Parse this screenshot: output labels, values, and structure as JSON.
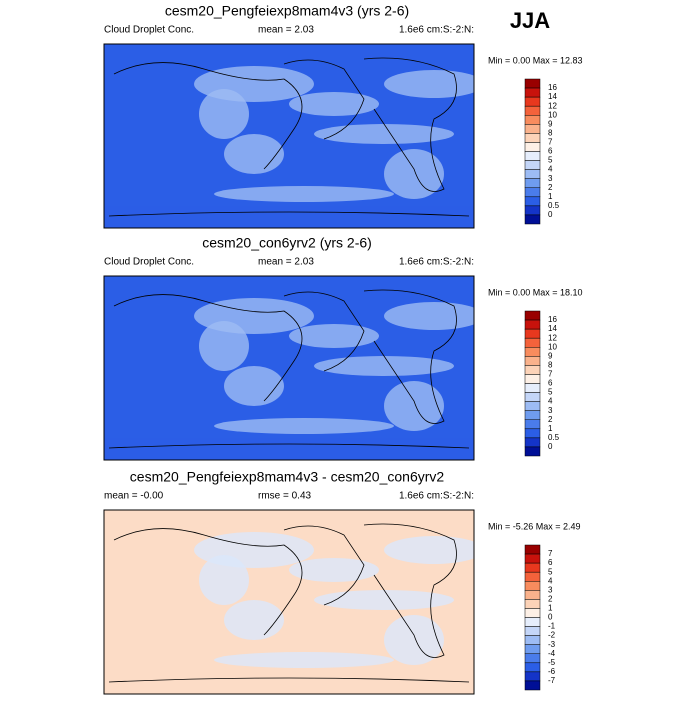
{
  "header": {
    "season": "JJA"
  },
  "panels": [
    {
      "title": "cesm20_Pengfeiexp8mam4v3 (yrs 2-6)",
      "left_label": "Cloud Droplet Conc.",
      "stat1": "mean =  2.03",
      "units": "1.6e6 cm:S:-2:N:",
      "minmax": "Min =  0.00 Max =  12.83",
      "colorbar": {
        "labels": [
          "16",
          "14",
          "12",
          "10",
          "9",
          "8",
          "7",
          "6",
          "5",
          "4",
          "3",
          "2",
          "1",
          "0.5",
          "0"
        ],
        "colors": [
          "#990000",
          "#c8120c",
          "#e8381e",
          "#f4623b",
          "#f88c5e",
          "#fab28c",
          "#fcd3b8",
          "#fdf0e6",
          "#e6eefc",
          "#c4d6f8",
          "#9dbcf4",
          "#6f9cef",
          "#4a7ceb",
          "#2b5ee6",
          "#1434c8",
          "#000f96"
        ]
      },
      "map": {
        "base": "#2b5ee6",
        "patch": "#9dbcf4"
      }
    },
    {
      "title": "cesm20_con6yrv2 (yrs 2-6)",
      "left_label": "Cloud Droplet Conc.",
      "stat1": "mean =  2.03",
      "units": "1.6e6 cm:S:-2:N:",
      "minmax": "Min =  0.00 Max =  18.10",
      "colorbar": {
        "labels": [
          "16",
          "14",
          "12",
          "10",
          "9",
          "8",
          "7",
          "6",
          "5",
          "4",
          "3",
          "2",
          "1",
          "0.5",
          "0"
        ],
        "colors": [
          "#990000",
          "#c8120c",
          "#e8381e",
          "#f4623b",
          "#f88c5e",
          "#fab28c",
          "#fcd3b8",
          "#fdf0e6",
          "#e6eefc",
          "#c4d6f8",
          "#9dbcf4",
          "#6f9cef",
          "#4a7ceb",
          "#2b5ee6",
          "#1434c8",
          "#000f96"
        ]
      },
      "map": {
        "base": "#2b5ee6",
        "patch": "#9dbcf4"
      }
    },
    {
      "title": "cesm20_Pengfeiexp8mam4v3 - cesm20_con6yrv2",
      "left_label": "mean = -0.00",
      "stat1": "rmse =  0.43",
      "units": "1.6e6 cm:S:-2:N:",
      "minmax": "Min = -5.26 Max =  2.49",
      "colorbar": {
        "labels": [
          "7",
          "6",
          "5",
          "4",
          "3",
          "2",
          "1",
          "0",
          "-1",
          "-2",
          "-3",
          "-4",
          "-5",
          "-6",
          "-7"
        ],
        "colors": [
          "#990000",
          "#c8120c",
          "#e8381e",
          "#f4623b",
          "#f88c5e",
          "#fab28c",
          "#fcd3b8",
          "#fdf0e6",
          "#e6eefc",
          "#c4d6f8",
          "#9dbcf4",
          "#6f9cef",
          "#4a7ceb",
          "#2b5ee6",
          "#1434c8",
          "#000f96"
        ]
      },
      "map": {
        "base": "#fcdcc6",
        "patch": "#dbe7fb"
      }
    }
  ]
}
